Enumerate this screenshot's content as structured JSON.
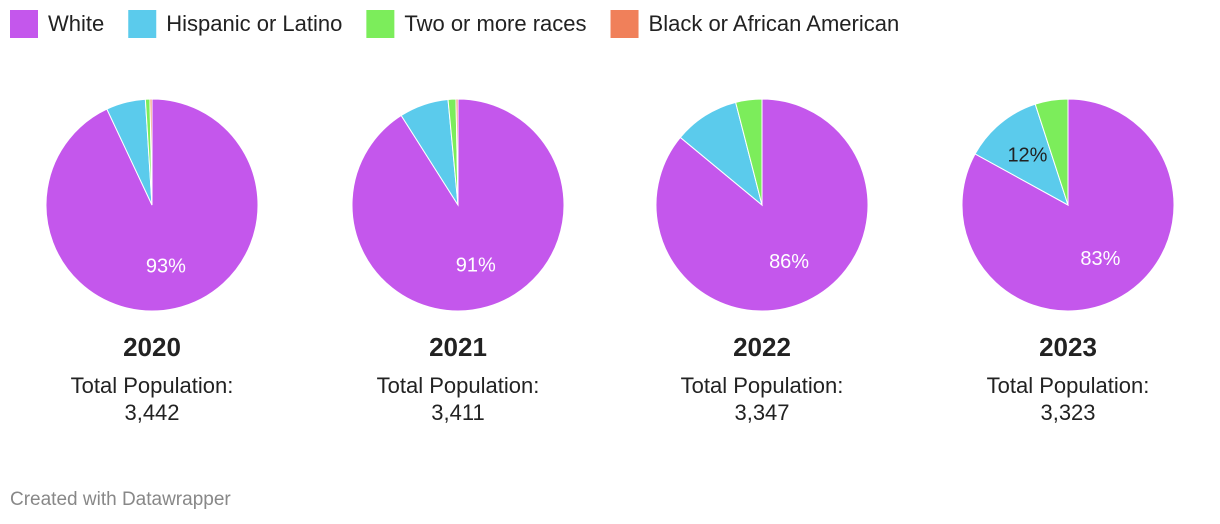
{
  "legend": {
    "labels": [
      "White",
      "Hispanic or Latino",
      "Two or more races",
      "Black or African American"
    ],
    "colors": [
      "#c457ec",
      "#5bcbec",
      "#7ced5b",
      "#f0805a"
    ]
  },
  "chart_data": [
    {
      "type": "pie",
      "title": "2020",
      "subtitle": "Total Population:",
      "total": {
        "value": 3442,
        "label": "3,442"
      },
      "values": [
        93,
        6,
        0.7,
        0.3
      ],
      "value_labels": [
        "93%",
        null,
        null,
        null
      ]
    },
    {
      "type": "pie",
      "title": "2021",
      "subtitle": "Total Population:",
      "total": {
        "value": 3411,
        "label": "3,411"
      },
      "values": [
        91,
        7.5,
        1.2,
        0.3
      ],
      "value_labels": [
        "91%",
        null,
        null,
        null
      ]
    },
    {
      "type": "pie",
      "title": "2022",
      "subtitle": "Total Population:",
      "total": {
        "value": 3347,
        "label": "3,347"
      },
      "values": [
        86,
        10,
        4,
        0
      ],
      "value_labels": [
        "86%",
        null,
        null,
        null
      ]
    },
    {
      "type": "pie",
      "title": "2023",
      "subtitle": "Total Population:",
      "total": {
        "value": 3323,
        "label": "3,323"
      },
      "values": [
        83,
        12,
        5,
        0
      ],
      "value_labels": [
        "83%",
        "12%",
        null,
        null
      ]
    }
  ],
  "credit": "Created with Datawrapper"
}
